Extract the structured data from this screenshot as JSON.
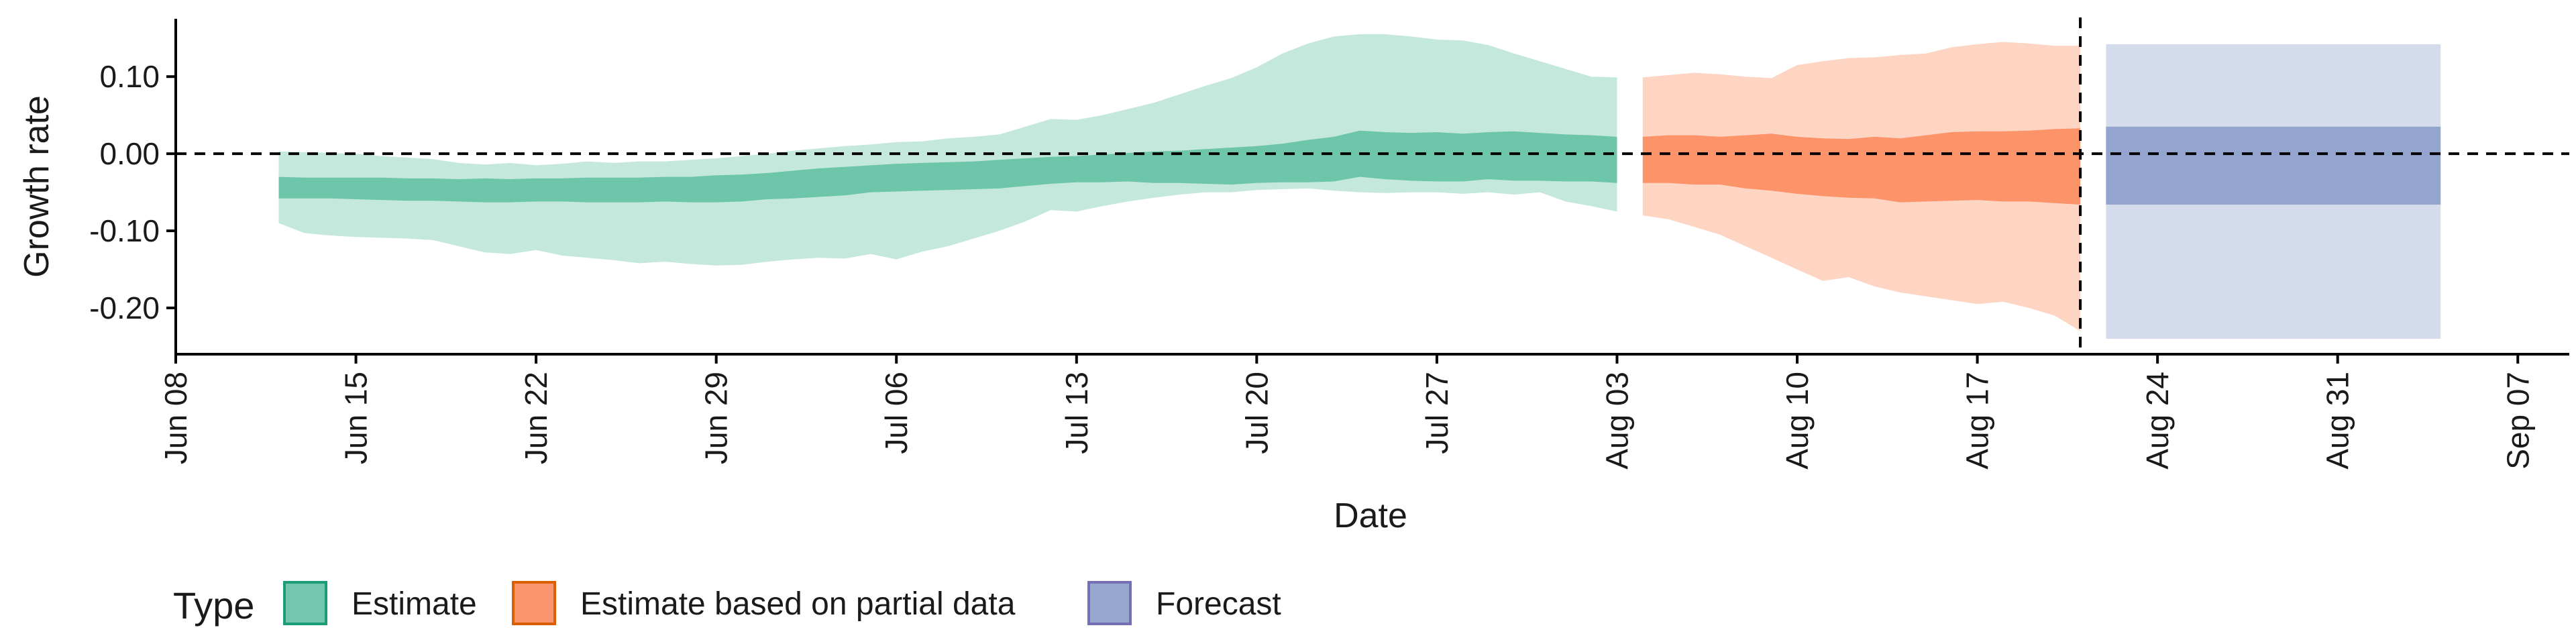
{
  "chart_data": {
    "type": "area",
    "xlabel": "Date",
    "ylabel": "Growth rate",
    "ylim": [
      -0.26,
      0.175
    ],
    "xlim": [
      "2020-06-08",
      "2020-09-09"
    ],
    "x_ticks": [
      "2020-06-08",
      "2020-06-15",
      "2020-06-22",
      "2020-06-29",
      "2020-07-06",
      "2020-07-13",
      "2020-07-20",
      "2020-07-27",
      "2020-08-03",
      "2020-08-10",
      "2020-08-17",
      "2020-08-24",
      "2020-08-31",
      "2020-09-07"
    ],
    "x_tick_labels": [
      "Jun 08",
      "Jun 15",
      "Jun 22",
      "Jun 29",
      "Jul 06",
      "Jul 13",
      "Jul 20",
      "Jul 27",
      "Aug 03",
      "Aug 10",
      "Aug 17",
      "Aug 24",
      "Aug 31",
      "Sep 07"
    ],
    "y_ticks": [
      -0.2,
      -0.1,
      0.0,
      0.1
    ],
    "y_tick_labels": [
      "-0.20",
      "-0.10",
      "0.00",
      "0.10"
    ],
    "reference_hline": 0.0,
    "reference_vline": "2020-08-21",
    "grid": false,
    "legend": {
      "title": "Type",
      "position": "bottom-left",
      "entries": [
        {
          "label": "Estimate",
          "fill": "#66c2a5",
          "stroke": "#1b9e77"
        },
        {
          "label": "Estimate based on partial data",
          "fill": "#fc8d62",
          "stroke": "#d95f02"
        },
        {
          "label": "Forecast",
          "fill": "#8da0cb",
          "stroke": "#7570b3"
        }
      ]
    },
    "series": [
      {
        "name": "Estimate",
        "color": "#1b9e77",
        "x": [
          "2020-06-12",
          "2020-06-13",
          "2020-06-14",
          "2020-06-15",
          "2020-06-16",
          "2020-06-17",
          "2020-06-18",
          "2020-06-19",
          "2020-06-20",
          "2020-06-21",
          "2020-06-22",
          "2020-06-23",
          "2020-06-24",
          "2020-06-25",
          "2020-06-26",
          "2020-06-27",
          "2020-06-28",
          "2020-06-29",
          "2020-06-30",
          "2020-07-01",
          "2020-07-02",
          "2020-07-03",
          "2020-07-04",
          "2020-07-05",
          "2020-07-06",
          "2020-07-07",
          "2020-07-08",
          "2020-07-09",
          "2020-07-10",
          "2020-07-11",
          "2020-07-12",
          "2020-07-13",
          "2020-07-14",
          "2020-07-15",
          "2020-07-16",
          "2020-07-17",
          "2020-07-18",
          "2020-07-19",
          "2020-07-20",
          "2020-07-21",
          "2020-07-22",
          "2020-07-23",
          "2020-07-24",
          "2020-07-25",
          "2020-07-26",
          "2020-07-27",
          "2020-07-28",
          "2020-07-29",
          "2020-07-30",
          "2020-07-31",
          "2020-08-01",
          "2020-08-02",
          "2020-08-03"
        ],
        "outer_low": [
          -0.09,
          -0.103,
          -0.106,
          -0.108,
          -0.109,
          -0.11,
          -0.112,
          -0.12,
          -0.128,
          -0.13,
          -0.125,
          -0.132,
          -0.135,
          -0.138,
          -0.142,
          -0.14,
          -0.143,
          -0.145,
          -0.144,
          -0.14,
          -0.137,
          -0.135,
          -0.136,
          -0.13,
          -0.137,
          -0.127,
          -0.12,
          -0.11,
          -0.1,
          -0.088,
          -0.073,
          -0.075,
          -0.068,
          -0.062,
          -0.057,
          -0.053,
          -0.05,
          -0.05,
          -0.047,
          -0.046,
          -0.045,
          -0.048,
          -0.05,
          -0.051,
          -0.05,
          -0.05,
          -0.052,
          -0.05,
          -0.053,
          -0.05,
          -0.062,
          -0.068,
          -0.075
        ],
        "inner_low": [
          -0.058,
          -0.058,
          -0.058,
          -0.059,
          -0.06,
          -0.061,
          -0.061,
          -0.062,
          -0.063,
          -0.063,
          -0.062,
          -0.062,
          -0.063,
          -0.063,
          -0.063,
          -0.062,
          -0.063,
          -0.063,
          -0.062,
          -0.059,
          -0.058,
          -0.056,
          -0.054,
          -0.05,
          -0.049,
          -0.048,
          -0.047,
          -0.046,
          -0.045,
          -0.042,
          -0.039,
          -0.037,
          -0.037,
          -0.036,
          -0.038,
          -0.038,
          -0.039,
          -0.04,
          -0.038,
          -0.037,
          -0.037,
          -0.036,
          -0.03,
          -0.033,
          -0.035,
          -0.036,
          -0.036,
          -0.033,
          -0.035,
          -0.035,
          -0.036,
          -0.036,
          -0.038
        ],
        "inner_high": [
          -0.03,
          -0.031,
          -0.031,
          -0.031,
          -0.031,
          -0.032,
          -0.032,
          -0.033,
          -0.032,
          -0.033,
          -0.032,
          -0.032,
          -0.031,
          -0.031,
          -0.031,
          -0.03,
          -0.03,
          -0.028,
          -0.027,
          -0.025,
          -0.022,
          -0.019,
          -0.017,
          -0.015,
          -0.013,
          -0.012,
          -0.011,
          -0.01,
          -0.008,
          -0.006,
          -0.004,
          -0.003,
          -0.001,
          0.001,
          0.003,
          0.004,
          0.006,
          0.008,
          0.01,
          0.013,
          0.018,
          0.022,
          0.03,
          0.028,
          0.027,
          0.028,
          0.026,
          0.028,
          0.029,
          0.027,
          0.025,
          0.024,
          0.022
        ],
        "outer_high": [
          0.003,
          0.002,
          0.001,
          0.0,
          -0.003,
          -0.005,
          -0.007,
          -0.012,
          -0.014,
          -0.012,
          -0.015,
          -0.013,
          -0.01,
          -0.012,
          -0.01,
          -0.01,
          -0.008,
          -0.006,
          -0.003,
          0.0,
          0.004,
          0.007,
          0.01,
          0.012,
          0.015,
          0.016,
          0.02,
          0.022,
          0.025,
          0.035,
          0.045,
          0.044,
          0.05,
          0.058,
          0.066,
          0.077,
          0.088,
          0.098,
          0.112,
          0.13,
          0.143,
          0.152,
          0.155,
          0.155,
          0.152,
          0.148,
          0.147,
          0.141,
          0.13,
          0.12,
          0.11,
          0.1,
          0.099
        ]
      },
      {
        "name": "Estimate based on partial data",
        "color": "#d95f02",
        "x": [
          "2020-08-04",
          "2020-08-05",
          "2020-08-06",
          "2020-08-07",
          "2020-08-08",
          "2020-08-09",
          "2020-08-10",
          "2020-08-11",
          "2020-08-12",
          "2020-08-13",
          "2020-08-14",
          "2020-08-15",
          "2020-08-16",
          "2020-08-17",
          "2020-08-18",
          "2020-08-19",
          "2020-08-20",
          "2020-08-21"
        ],
        "outer_low": [
          -0.08,
          -0.085,
          -0.095,
          -0.105,
          -0.12,
          -0.135,
          -0.15,
          -0.165,
          -0.16,
          -0.172,
          -0.18,
          -0.185,
          -0.19,
          -0.195,
          -0.192,
          -0.2,
          -0.21,
          -0.23
        ],
        "inner_low": [
          -0.038,
          -0.038,
          -0.04,
          -0.04,
          -0.045,
          -0.048,
          -0.052,
          -0.055,
          -0.057,
          -0.058,
          -0.063,
          -0.062,
          -0.061,
          -0.06,
          -0.062,
          -0.062,
          -0.064,
          -0.066
        ],
        "inner_high": [
          0.022,
          0.024,
          0.024,
          0.022,
          0.024,
          0.026,
          0.022,
          0.02,
          0.019,
          0.022,
          0.02,
          0.024,
          0.028,
          0.029,
          0.029,
          0.03,
          0.032,
          0.033
        ],
        "outer_high": [
          0.099,
          0.102,
          0.105,
          0.103,
          0.1,
          0.098,
          0.115,
          0.12,
          0.124,
          0.125,
          0.128,
          0.13,
          0.138,
          0.142,
          0.145,
          0.143,
          0.14,
          0.14
        ]
      },
      {
        "name": "Forecast",
        "color": "#7570b3",
        "x": [
          "2020-08-22",
          "2020-09-04"
        ],
        "outer_low": [
          -0.24,
          -0.24
        ],
        "inner_low": [
          -0.066,
          -0.066
        ],
        "inner_high": [
          0.035,
          0.035
        ],
        "outer_high": [
          0.142,
          0.142
        ]
      }
    ]
  }
}
